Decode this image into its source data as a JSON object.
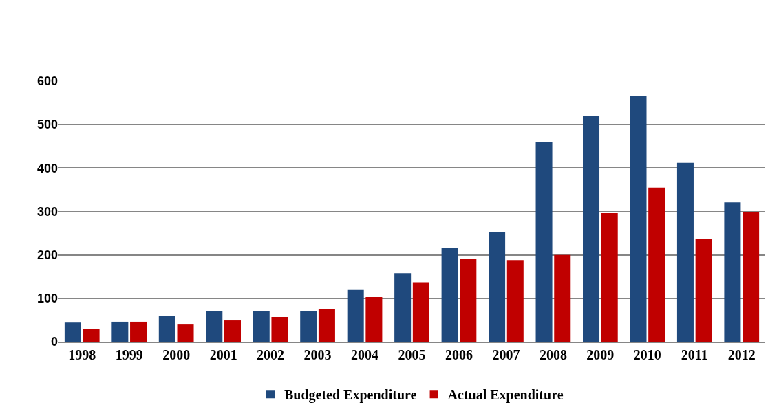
{
  "chart_data": {
    "type": "bar",
    "categories": [
      "1998",
      "1999",
      "2000",
      "2001",
      "2002",
      "2003",
      "2004",
      "2005",
      "2006",
      "2007",
      "2008",
      "2009",
      "2010",
      "2011",
      "2012"
    ],
    "series": [
      {
        "name": "Budgeted Expenditure",
        "color": "#1f497d",
        "values": [
          44,
          46,
          60,
          71,
          71,
          71,
          119,
          158,
          216,
          252,
          460,
          520,
          566,
          412,
          321
        ]
      },
      {
        "name": "Actual Expenditure",
        "color": "#c00000",
        "values": [
          29,
          46,
          41,
          49,
          57,
          75,
          103,
          137,
          191,
          188,
          200,
          296,
          355,
          237,
          298
        ]
      }
    ],
    "ylim": [
      0,
      600
    ],
    "yticks": [
      0,
      100,
      200,
      300,
      400,
      500,
      600
    ],
    "grid": "y",
    "legend": "bottom"
  }
}
